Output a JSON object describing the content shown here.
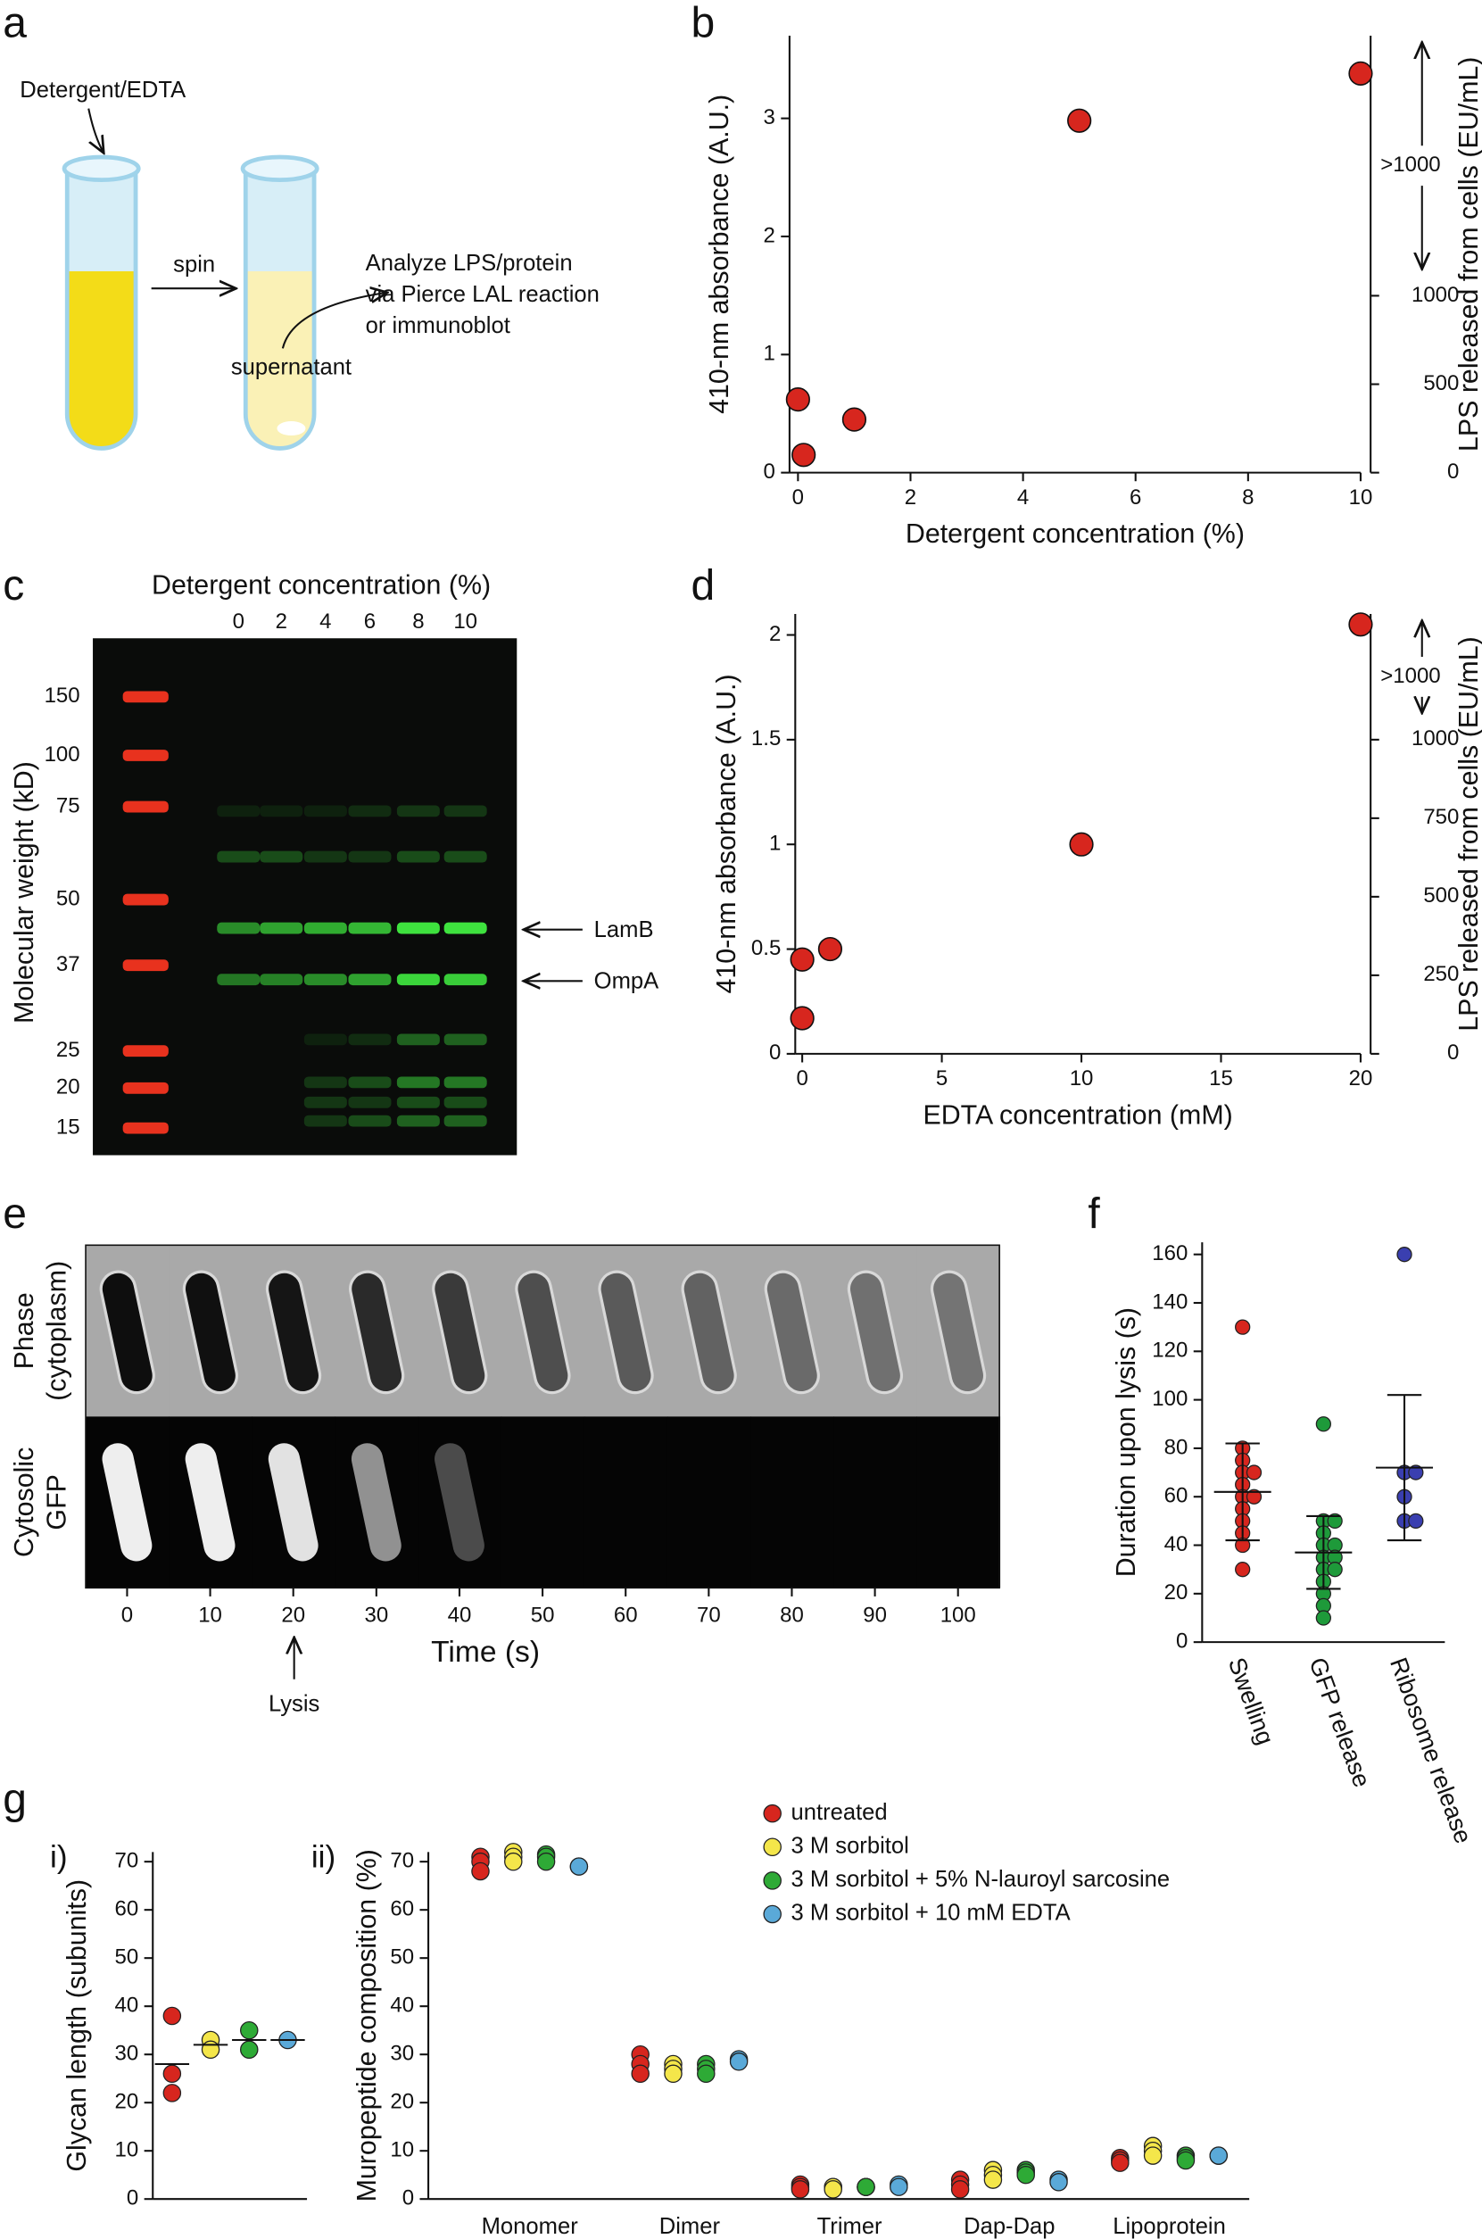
{
  "panel_labels": [
    "a",
    "b",
    "c",
    "d",
    "e",
    "f",
    "g",
    "i)",
    "ii)"
  ],
  "diagram": {
    "reagent": "Detergent/EDTA",
    "step": "spin",
    "analysis": [
      "Analyze LPS/protein",
      "via Pierce LAL reaction",
      "or immunoblot"
    ],
    "fraction": "supernatant"
  },
  "gel": {
    "title": "Detergent concentration (%)",
    "lanes": [
      0,
      2,
      4,
      6,
      8,
      10
    ],
    "ylabel": "Molecular weight (kD)",
    "markers": [
      150,
      100,
      75,
      50,
      37,
      25,
      20,
      15
    ],
    "bands": [
      "LamB",
      "OmpA"
    ]
  },
  "timelapse": {
    "rows": [
      [
        "Phase",
        "(cytoplasm)"
      ],
      [
        "Cytosolic",
        "GFP"
      ]
    ],
    "times": [
      0,
      10,
      20,
      30,
      40,
      50,
      60,
      70,
      80,
      90,
      100
    ],
    "xlabel": "Time (s)",
    "event": "Lysis"
  },
  "chart_data": [
    {
      "type": "scatter",
      "x": [
        0,
        0.1,
        1,
        5,
        10
      ],
      "values": [
        0.62,
        0.15,
        0.45,
        2.98,
        3.38
      ],
      "color": "#d7261e",
      "xlabel": "Detergent concentration (%)",
      "ylabel": "410-nm absorbance (A.U.)",
      "y2label": "LPS released from cells (EU/mL)",
      "xlim": [
        -0.15,
        10
      ],
      "xticks": [
        0,
        2,
        4,
        6,
        8,
        10
      ],
      "ylim": [
        0,
        3.7
      ],
      "yticks": [
        0,
        1,
        2,
        3
      ],
      "y2lim": [
        0,
        2470
      ],
      "y2ticks": [
        0,
        500,
        1000
      ],
      "annotation": ">1000"
    },
    {
      "type": "scatter",
      "x": [
        0,
        0,
        1,
        10,
        20
      ],
      "values": [
        0.45,
        0.17,
        0.5,
        1.0,
        2.05
      ],
      "color": "#d7261e",
      "xlabel": "EDTA concentration (mM)",
      "ylabel": "410-nm absorbance (A.U.)",
      "y2label": "LPS released from cells (EU/mL)",
      "xlim": [
        -0.25,
        20
      ],
      "xticks": [
        0,
        5,
        10,
        15,
        20
      ],
      "ylim": [
        0,
        2.1
      ],
      "yticks": [
        0,
        0.5,
        1,
        1.5,
        2
      ],
      "y2lim": [
        0,
        1400
      ],
      "y2ticks": [
        0,
        250,
        500,
        750,
        1000
      ],
      "annotation": ">1000"
    },
    {
      "type": "strip",
      "ylabel": "Duration upon lysis (s)",
      "categories": [
        "Swelling",
        "GFP release",
        "Ribosome release"
      ],
      "colors": [
        "#d7261e",
        "#1e9a3a",
        "#3a3fb0"
      ],
      "points": [
        [
          130,
          80,
          75,
          70,
          70,
          65,
          60,
          60,
          55,
          50,
          45,
          40,
          30
        ],
        [
          90,
          50,
          50,
          45,
          40,
          40,
          35,
          35,
          30,
          30,
          25,
          20,
          15,
          10
        ],
        [
          160,
          70,
          70,
          60,
          50,
          50
        ]
      ],
      "means": [
        62,
        37,
        72
      ],
      "errors": [
        20,
        15,
        30
      ],
      "ylim": [
        0,
        165
      ],
      "yticks": [
        0,
        20,
        40,
        60,
        80,
        100,
        120,
        140,
        160
      ]
    },
    {
      "type": "dot",
      "ylabel": "Glycan length (subunits)",
      "categories": [
        null
      ],
      "series": [
        {
          "color": "#d7261e",
          "values": [
            [
              38,
              26,
              22
            ]
          ],
          "means": [
            28
          ]
        },
        {
          "color": "#f4e64a",
          "values": [
            [
              33,
              31
            ]
          ],
          "means": [
            32
          ]
        },
        {
          "color": "#2eaa36",
          "values": [
            [
              35,
              31
            ]
          ],
          "means": [
            33
          ]
        },
        {
          "color": "#5aa9d8",
          "values": [
            [
              33
            ]
          ],
          "means": [
            33
          ]
        }
      ],
      "ylim": [
        0,
        72
      ],
      "yticks": [
        0,
        10,
        20,
        30,
        40,
        50,
        60,
        70
      ]
    },
    {
      "type": "dot",
      "ylabel": "Muropeptide composition (%)",
      "categories": [
        "Monomer",
        "Dimer",
        "Trimer",
        "Dap-Dap",
        "Lipoprotein"
      ],
      "series": [
        {
          "name": "untreated",
          "color": "#d7261e",
          "values": [
            [
              71,
              70,
              68
            ],
            [
              30,
              28,
              26
            ],
            [
              3,
              2.5,
              2
            ],
            [
              4,
              3,
              2
            ],
            [
              8.5,
              8,
              7.5
            ]
          ]
        },
        {
          "name": "3 M sorbitol",
          "color": "#f4e64a",
          "values": [
            [
              72,
              71,
              70
            ],
            [
              28,
              27,
              26
            ],
            [
              2.5,
              2.5,
              2
            ],
            [
              6,
              5,
              4
            ],
            [
              11,
              10,
              9
            ]
          ]
        },
        {
          "name": "3 M sorbitol + 5% N-lauroyl sarcosine",
          "color": "#2eaa36",
          "values": [
            [
              71.5,
              71,
              70
            ],
            [
              28,
              27,
              26
            ],
            [
              2.5,
              2.5,
              2.5
            ],
            [
              6,
              5.5,
              5
            ],
            [
              9,
              8.5,
              8
            ]
          ]
        },
        {
          "name": "3 M sorbitol + 10 mM EDTA",
          "color": "#5aa9d8",
          "values": [
            [
              69,
              69
            ],
            [
              29,
              28.5
            ],
            [
              3,
              2.5
            ],
            [
              4,
              3.5
            ],
            [
              9,
              9
            ]
          ]
        }
      ],
      "ylim": [
        0,
        72
      ],
      "yticks": [
        0,
        10,
        20,
        30,
        40,
        50,
        60,
        70
      ]
    }
  ]
}
